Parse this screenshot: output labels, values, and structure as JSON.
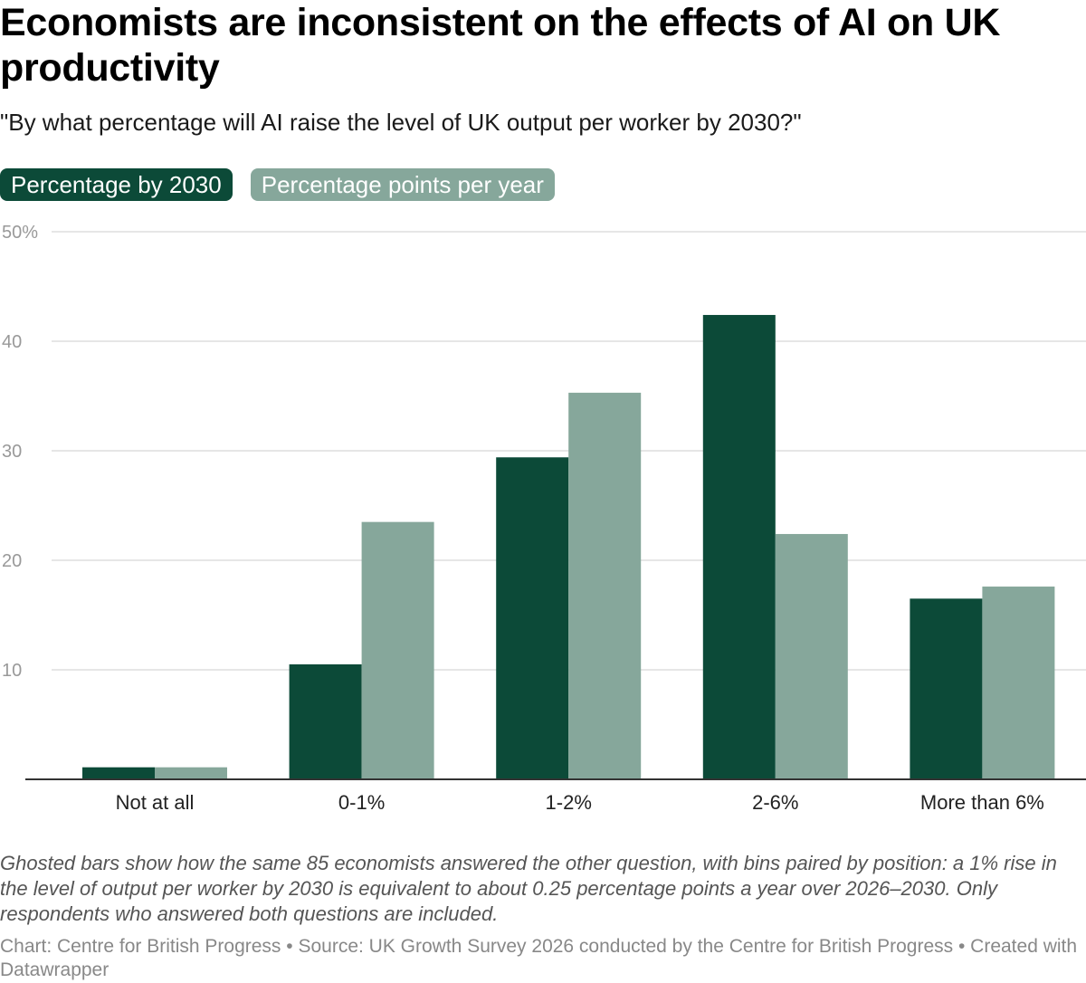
{
  "title": "Economists are inconsistent on the effects of AI on UK productivity",
  "subtitle": "\"By what percentage will AI raise the level of UK output per worker by 2030?\"",
  "legend": {
    "series1": "Percentage by 2030",
    "series2": "Percentage points per year"
  },
  "colors": {
    "series1": "#0c4a38",
    "series2": "#86a79b",
    "grid": "#dddddd",
    "axis": "#333333"
  },
  "chart_data": {
    "type": "bar",
    "categories": [
      "Not at all",
      "0-1%",
      "1-2%",
      "2-6%",
      "More than 6%"
    ],
    "series": [
      {
        "name": "Percentage by 2030",
        "values": [
          1.1,
          10.5,
          29.4,
          42.4,
          16.5
        ]
      },
      {
        "name": "Percentage points per year",
        "values": [
          1.1,
          23.5,
          35.3,
          22.4,
          17.6
        ]
      }
    ],
    "ylim": [
      0,
      50
    ],
    "yticks": [
      10,
      20,
      30,
      40,
      50
    ],
    "ytick_labels": [
      "10",
      "20",
      "30",
      "40",
      "50%"
    ],
    "grid": true,
    "legend_position": "top-left"
  },
  "notes": "Ghosted bars show how the same 85 economists answered the other question, with bins paired by position: a 1% rise in the level of output per worker by 2030 is equivalent to about 0.25 percentage points a year over 2026–2030. Only respondents who answered both questions are included.",
  "source": "Chart: Centre for British Progress • Source: UK Growth Survey 2026 conducted by the Centre for British Progress • Created with Datawrapper"
}
